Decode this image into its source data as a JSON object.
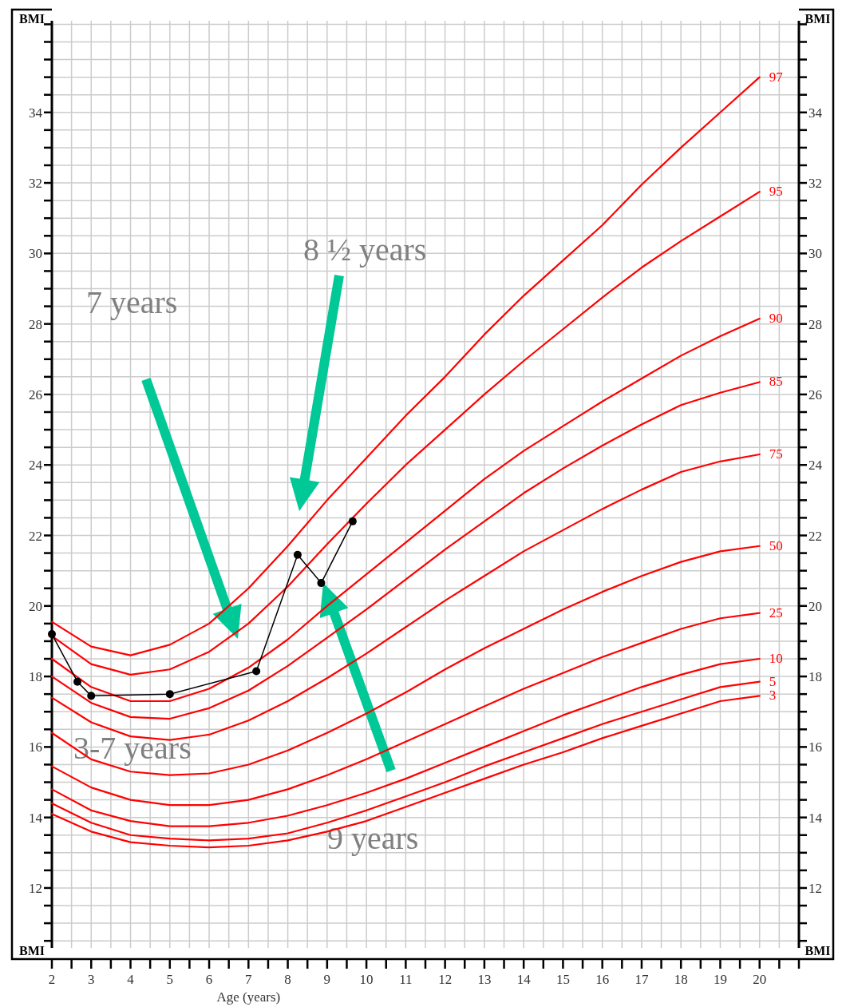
{
  "chart_data": {
    "type": "line",
    "xlabel": "Age (years)",
    "ylabel": "BMI",
    "y2label": "BMI",
    "x": [
      2,
      3,
      4,
      5,
      6,
      7,
      8,
      9,
      10,
      11,
      12,
      13,
      14,
      15,
      16,
      17,
      18,
      19,
      20
    ],
    "series": [
      {
        "name": "97",
        "color": "#ff0000",
        "marker": "none",
        "values": [
          19.55,
          18.85,
          18.6,
          18.9,
          19.5,
          20.5,
          21.7,
          23.0,
          24.2,
          25.4,
          26.5,
          27.7,
          28.8,
          29.8,
          30.8,
          31.95,
          33.0,
          34.0,
          35.0
        ]
      },
      {
        "name": "95",
        "color": "#ff0000",
        "marker": "none",
        "values": [
          19.15,
          18.35,
          18.05,
          18.2,
          18.7,
          19.5,
          20.55,
          21.75,
          22.9,
          24.0,
          25.0,
          26.0,
          26.95,
          27.85,
          28.75,
          29.6,
          30.35,
          31.05,
          31.75
        ]
      },
      {
        "name": "90",
        "color": "#ff0000",
        "marker": "none",
        "values": [
          18.5,
          17.7,
          17.3,
          17.3,
          17.65,
          18.25,
          19.05,
          20.0,
          20.9,
          21.8,
          22.7,
          23.6,
          24.4,
          25.1,
          25.8,
          26.45,
          27.1,
          27.65,
          28.15
        ]
      },
      {
        "name": "85",
        "color": "#ff0000",
        "marker": "none",
        "values": [
          18.0,
          17.25,
          16.85,
          16.8,
          17.1,
          17.6,
          18.3,
          19.1,
          19.9,
          20.75,
          21.6,
          22.4,
          23.2,
          23.9,
          24.55,
          25.15,
          25.7,
          26.05,
          26.35
        ]
      },
      {
        "name": "75",
        "color": "#ff0000",
        "marker": "none",
        "values": [
          17.4,
          16.7,
          16.3,
          16.2,
          16.35,
          16.75,
          17.3,
          17.95,
          18.65,
          19.4,
          20.15,
          20.85,
          21.55,
          22.15,
          22.75,
          23.3,
          23.8,
          24.1,
          24.3
        ]
      },
      {
        "name": "50",
        "color": "#ff0000",
        "marker": "none",
        "values": [
          16.4,
          15.65,
          15.3,
          15.2,
          15.25,
          15.5,
          15.9,
          16.4,
          16.95,
          17.55,
          18.2,
          18.8,
          19.35,
          19.9,
          20.4,
          20.85,
          21.25,
          21.55,
          21.7
        ]
      },
      {
        "name": "25",
        "color": "#ff0000",
        "marker": "none",
        "values": [
          15.45,
          14.85,
          14.5,
          14.35,
          14.35,
          14.5,
          14.8,
          15.2,
          15.65,
          16.15,
          16.65,
          17.15,
          17.65,
          18.1,
          18.55,
          18.95,
          19.35,
          19.65,
          19.8
        ]
      },
      {
        "name": "10",
        "color": "#ff0000",
        "marker": "none",
        "values": [
          14.8,
          14.2,
          13.9,
          13.75,
          13.75,
          13.85,
          14.05,
          14.35,
          14.7,
          15.1,
          15.55,
          16.0,
          16.45,
          16.9,
          17.3,
          17.7,
          18.05,
          18.35,
          18.5
        ]
      },
      {
        "name": "5",
        "color": "#ff0000",
        "marker": "none",
        "values": [
          14.4,
          13.85,
          13.5,
          13.4,
          13.35,
          13.4,
          13.55,
          13.85,
          14.2,
          14.6,
          15.0,
          15.45,
          15.85,
          16.25,
          16.65,
          17.0,
          17.35,
          17.7,
          17.85
        ]
      },
      {
        "name": "3",
        "color": "#ff0000",
        "marker": "none",
        "values": [
          14.1,
          13.6,
          13.3,
          13.2,
          13.15,
          13.2,
          13.35,
          13.6,
          13.9,
          14.3,
          14.7,
          15.1,
          15.5,
          15.85,
          16.25,
          16.6,
          16.95,
          17.3,
          17.45
        ]
      },
      {
        "color": "#000000",
        "marker": "circle",
        "x": [
          2.0,
          2.65,
          3.0,
          5.0,
          7.2,
          8.25,
          8.85,
          9.65
        ],
        "values": [
          19.2,
          17.85,
          17.45,
          17.5,
          18.15,
          21.45,
          20.65,
          22.4
        ]
      }
    ],
    "annotations": [
      "8 ½ years",
      "7 years",
      "3-7 years",
      "9 years"
    ],
    "xlim": [
      2,
      21
    ],
    "xticks": [
      2,
      {
        "value": 2.5,
        "label": null
      },
      3,
      {
        "value": 3.5,
        "label": null
      },
      4,
      {
        "value": 4.5,
        "label": null
      },
      5,
      {
        "value": 5.5,
        "label": null
      },
      6,
      {
        "value": 6.5,
        "label": null
      },
      7,
      {
        "value": 7.5,
        "label": null
      },
      8,
      {
        "value": 8.5,
        "label": null
      },
      9,
      {
        "value": 9.5,
        "label": null
      },
      10,
      {
        "value": 10.5,
        "label": null
      },
      11,
      {
        "value": 11.5,
        "label": null
      },
      12,
      {
        "value": 12.5,
        "label": null
      },
      13,
      {
        "value": 13.5,
        "label": null
      },
      14,
      {
        "value": 14.5,
        "label": null
      },
      15,
      {
        "value": 15.5,
        "label": null
      },
      16,
      {
        "value": 16.5,
        "label": null
      },
      17,
      {
        "value": 17.5,
        "label": null
      },
      18,
      {
        "value": 18.5,
        "label": null
      },
      19,
      {
        "value": 19.5,
        "label": null
      },
      20,
      {
        "value": 20.5,
        "label": null
      },
      {
        "value": 21,
        "label": null
      }
    ],
    "ylim": [
      10.3,
      36.6
    ],
    "yticks": [
      {
        "value": 10.5,
        "label": null
      },
      {
        "value": 11,
        "label": null
      },
      {
        "value": 11.5,
        "label": null
      },
      12,
      {
        "value": 12.5,
        "label": null
      },
      {
        "value": 13,
        "label": null
      },
      {
        "value": 13.5,
        "label": null
      },
      14,
      {
        "value": 14.5,
        "label": null
      },
      {
        "value": 15,
        "label": null
      },
      {
        "value": 15.5,
        "label": null
      },
      16,
      {
        "value": 16.5,
        "label": null
      },
      {
        "value": 17,
        "label": null
      },
      {
        "value": 17.5,
        "label": null
      },
      18,
      {
        "value": 18.5,
        "label": null
      },
      {
        "value": 19,
        "label": null
      },
      {
        "value": 19.5,
        "label": null
      },
      20,
      {
        "value": 20.5,
        "label": null
      },
      {
        "value": 21,
        "label": null
      },
      {
        "value": 21.5,
        "label": null
      },
      22,
      {
        "value": 22.5,
        "label": null
      },
      {
        "value": 23,
        "label": null
      },
      {
        "value": 23.5,
        "label": null
      },
      24,
      {
        "value": 24.5,
        "label": null
      },
      {
        "value": 25,
        "label": null
      },
      {
        "value": 25.5,
        "label": null
      },
      26,
      {
        "value": 26.5,
        "label": null
      },
      {
        "value": 27,
        "label": null
      },
      {
        "value": 27.5,
        "label": null
      },
      28,
      {
        "value": 28.5,
        "label": null
      },
      {
        "value": 29,
        "label": null
      },
      {
        "value": 29.5,
        "label": null
      },
      30,
      {
        "value": 30.5,
        "label": null
      },
      {
        "value": 31,
        "label": null
      },
      {
        "value": 31.5,
        "label": null
      },
      32,
      {
        "value": 32.5,
        "label": null
      },
      {
        "value": 33,
        "label": null
      },
      {
        "value": 33.5,
        "label": null
      },
      34,
      {
        "value": 34.5,
        "label": null
      },
      {
        "value": 35,
        "label": null
      },
      {
        "value": 35.5,
        "label": null
      },
      {
        "value": 36,
        "label": null
      },
      {
        "value": 36.5,
        "label": null
      }
    ],
    "y2lim": [
      10.3,
      36.6
    ],
    "y2ticks": [
      {
        "value": 10.5,
        "label": null
      },
      {
        "value": 11,
        "label": null
      },
      {
        "value": 11.5,
        "label": null
      },
      12,
      {
        "value": 12.5,
        "label": null
      },
      {
        "value": 13,
        "label": null
      },
      {
        "value": 13.5,
        "label": null
      },
      14,
      {
        "value": 14.5,
        "label": null
      },
      {
        "value": 15,
        "label": null
      },
      {
        "value": 15.5,
        "label": null
      },
      16,
      {
        "value": 16.5,
        "label": null
      },
      {
        "value": 17,
        "label": null
      },
      {
        "value": 17.5,
        "label": null
      },
      18,
      {
        "value": 18.5,
        "label": null
      },
      {
        "value": 19,
        "label": null
      },
      {
        "value": 19.5,
        "label": null
      },
      20,
      {
        "value": 20.5,
        "label": null
      },
      {
        "value": 21,
        "label": null
      },
      {
        "value": 21.5,
        "label": null
      },
      22,
      {
        "value": 22.5,
        "label": null
      },
      {
        "value": 23,
        "label": null
      },
      {
        "value": 23.5,
        "label": null
      },
      24,
      {
        "value": 24.5,
        "label": null
      },
      {
        "value": 25,
        "label": null
      },
      {
        "value": 25.5,
        "label": null
      },
      26,
      {
        "value": 26.5,
        "label": null
      },
      {
        "value": 27,
        "label": null
      },
      {
        "value": 27.5,
        "label": null
      },
      28,
      {
        "value": 28.5,
        "label": null
      },
      {
        "value": 29,
        "label": null
      },
      {
        "value": 29.5,
        "label": null
      },
      30,
      {
        "value": 30.5,
        "label": null
      },
      {
        "value": 31,
        "label": null
      },
      {
        "value": 31.5,
        "label": null
      },
      32,
      {
        "value": 32.5,
        "label": null
      },
      {
        "value": 33,
        "label": null
      },
      {
        "value": 33.5,
        "label": null
      },
      34,
      {
        "value": 34.5,
        "label": null
      },
      {
        "value": 35,
        "label": null
      },
      {
        "value": 35.5,
        "label": null
      },
      {
        "value": 36,
        "label": null
      },
      {
        "value": 36.5,
        "label": null
      }
    ],
    "grid": true
  }
}
